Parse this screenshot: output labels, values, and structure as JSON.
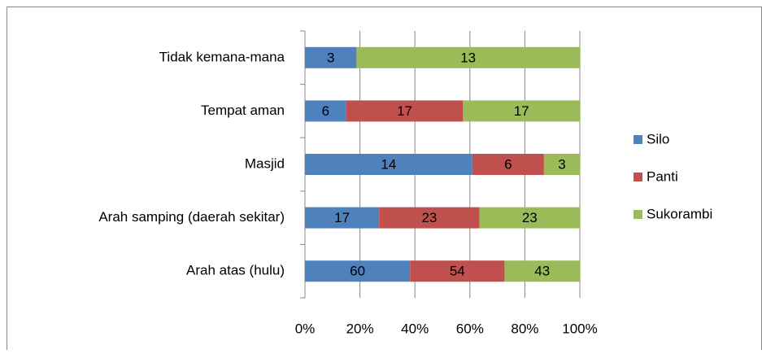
{
  "chart_data": {
    "type": "bar",
    "orientation": "horizontal",
    "stacked": "percent",
    "categories": [
      "Tidak kemana-mana",
      "Tempat aman",
      "Masjid",
      "Arah samping (daerah sekitar)",
      "Arah atas (hulu)"
    ],
    "series": [
      {
        "name": "Silo",
        "color": "#4f81bd",
        "values": [
          3,
          6,
          14,
          17,
          60
        ]
      },
      {
        "name": "Panti",
        "color": "#c0504d",
        "values": [
          0,
          17,
          6,
          23,
          54
        ]
      },
      {
        "name": "Sukorambi",
        "color": "#9bbb59",
        "values": [
          13,
          17,
          3,
          23,
          43
        ]
      }
    ],
    "xlim": [
      0,
      100
    ],
    "xticks": [
      {
        "value": 0,
        "label": "0%"
      },
      {
        "value": 20,
        "label": "20%"
      },
      {
        "value": 40,
        "label": "40%"
      },
      {
        "value": 60,
        "label": "60%"
      },
      {
        "value": 80,
        "label": "80%"
      },
      {
        "value": 100,
        "label": "100%"
      }
    ],
    "grid": true,
    "legend": "right"
  }
}
